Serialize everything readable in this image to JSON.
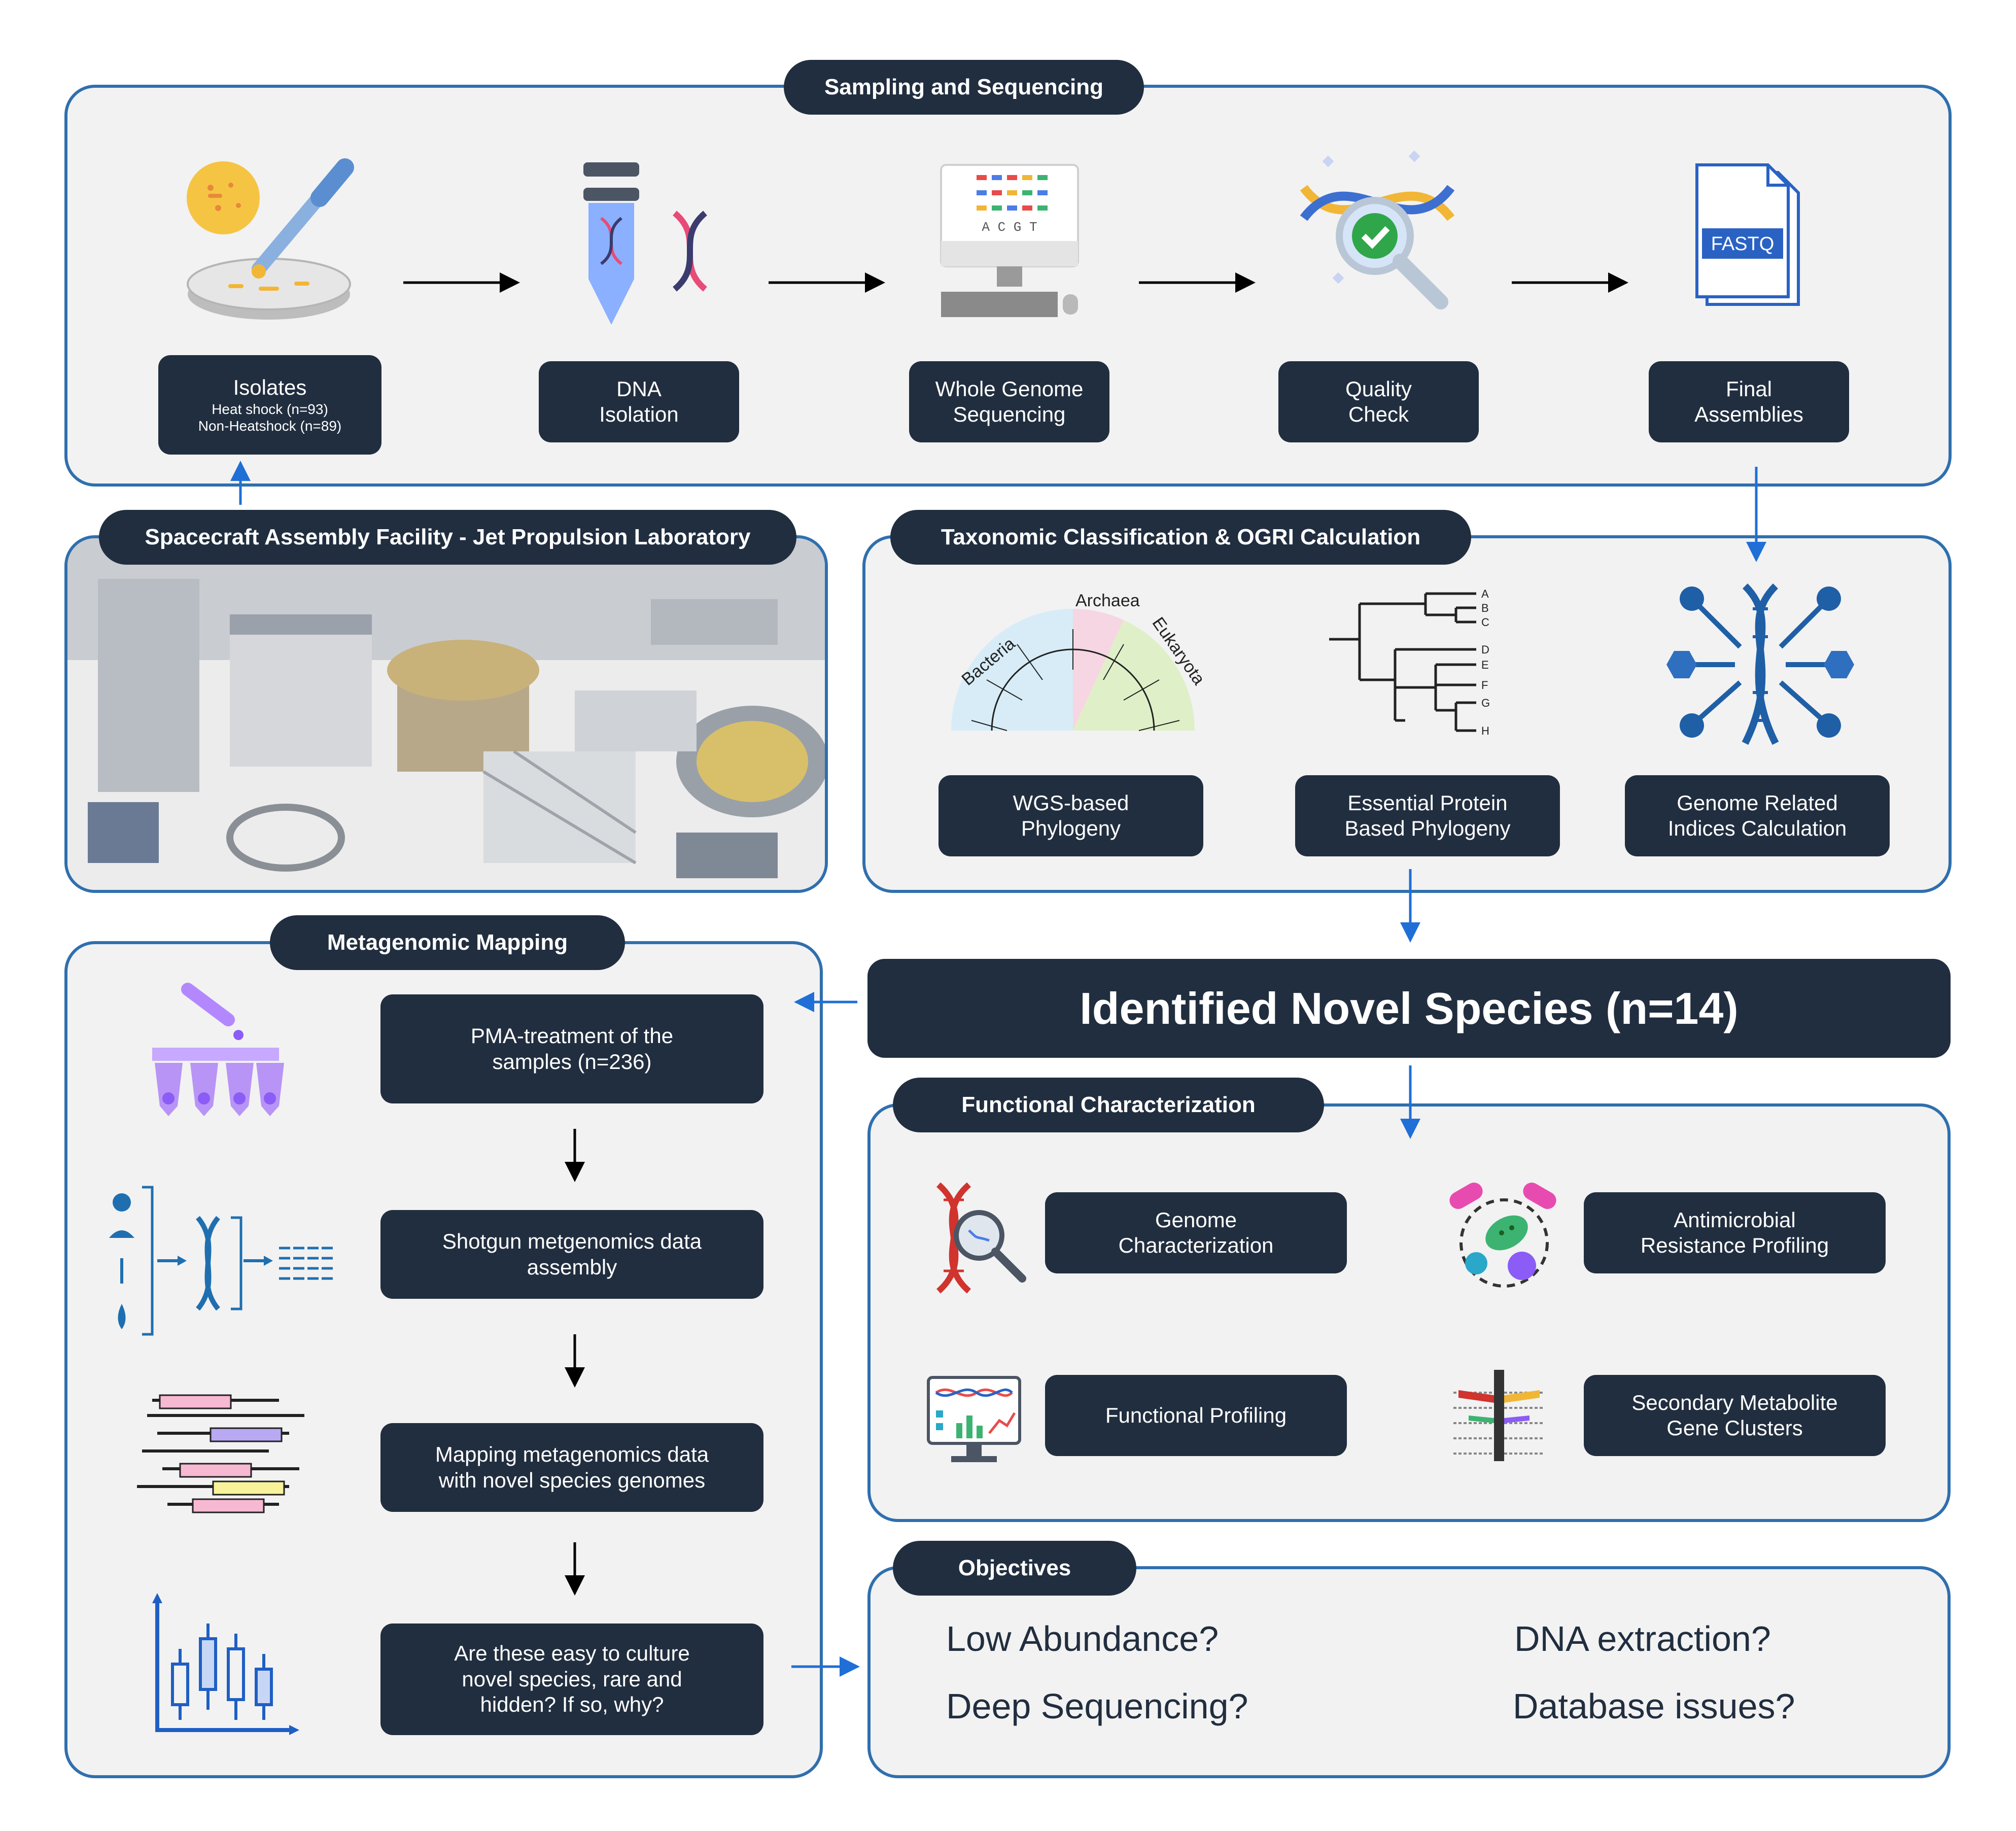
{
  "sampling": {
    "title": "Sampling and Sequencing",
    "isolates": {
      "label": "Isolates",
      "line1": "Heat shock (n=93)",
      "line2": "Non-Heatshock (n=89)"
    },
    "dna_isolation": {
      "line1": "DNA",
      "line2": "Isolation"
    },
    "wgs": {
      "line1": "Whole Genome",
      "line2": "Sequencing"
    },
    "quality": {
      "line1": "Quality",
      "line2": "Check"
    },
    "final": {
      "line1": "Final",
      "line2": "Assemblies"
    },
    "fastq_label": "FASTQ",
    "acgt_label": "A C G T"
  },
  "facility": {
    "title": "Spacecraft Assembly Facility - Jet Propulsion Laboratory"
  },
  "taxonomy": {
    "title": "Taxonomic Classification & OGRI Calculation",
    "wgs_phylogeny": {
      "line1": "WGS-based",
      "line2": "Phylogeny"
    },
    "protein_phylogeny": {
      "line1": "Essential Protein",
      "line2": "Based Phylogeny"
    },
    "genome_indices": {
      "line1": "Genome Related",
      "line2": "Indices Calculation"
    },
    "tree_labels": [
      "Bacteria",
      "Archaea",
      "Eukaryota"
    ],
    "leaf_labels": [
      "A",
      "B",
      "C",
      "D",
      "E",
      "F",
      "G",
      "H"
    ]
  },
  "novel": {
    "title": "Identified Novel Species (n=14)"
  },
  "metagenomic": {
    "title": "Metagenomic Mapping",
    "step1": {
      "line1": "PMA-treatment of the",
      "line2": "samples (n=236)"
    },
    "step2": {
      "line1": "Shotgun metgenomics data",
      "line2": "assembly"
    },
    "step3": {
      "line1": "Mapping metagenomics data",
      "line2": "with novel species genomes"
    },
    "step4": {
      "line1": "Are these easy to culture",
      "line2": "novel species, rare and",
      "line3": "hidden? If so, why?"
    }
  },
  "functional": {
    "title": "Functional Characterization",
    "genome": {
      "line1": "Genome",
      "line2": "Characterization"
    },
    "amr": {
      "line1": "Antimicrobial",
      "line2": "Resistance Profiling"
    },
    "profiling": {
      "line1": "Functional Profiling"
    },
    "smgc": {
      "line1": "Secondary Metabolite",
      "line2": "Gene Clusters"
    }
  },
  "objectives": {
    "title": "Objectives",
    "items": [
      "Low Abundance?",
      "DNA extraction?",
      "Deep Sequencing?",
      "Database issues?"
    ]
  },
  "colors": {
    "panel_border": "#2f6fae",
    "panel_fill": "#f2f2f2",
    "box_fill": "#212e3f",
    "arrow_blue": "#1f6fd6"
  }
}
